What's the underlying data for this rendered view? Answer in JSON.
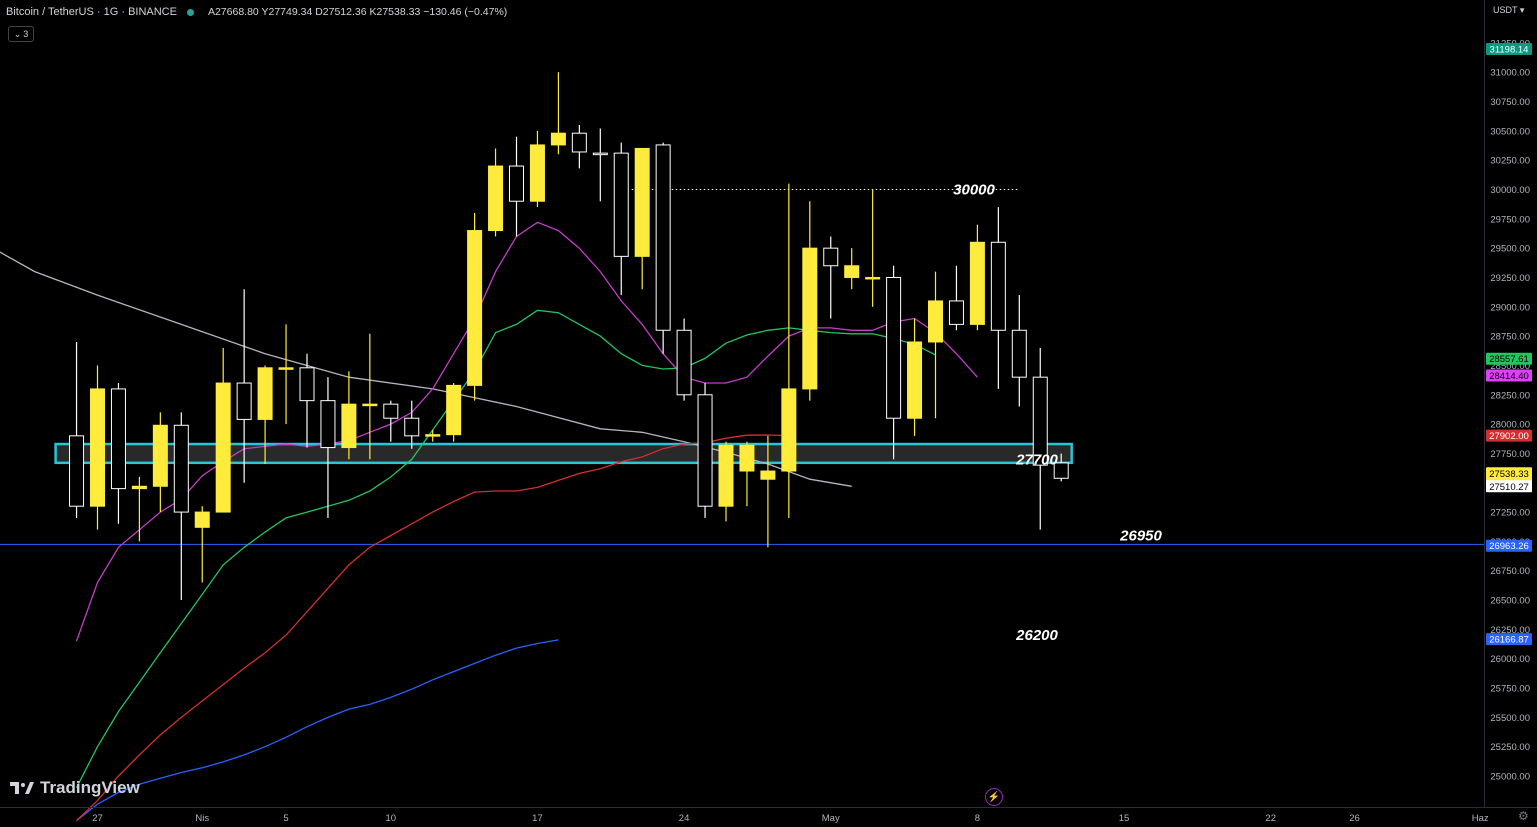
{
  "header": {
    "title": "Bitcoin / TetherUS · 1G · BINANCE",
    "ohlc": "A27668.80  Y27749.34  D27512.36  K27538.33  −130.46 (−0.47%)",
    "collapse_label": "3"
  },
  "axis": {
    "currency": "USDT",
    "y_ticks": [
      "31250.00",
      "31000.00",
      "30750.00",
      "30500.00",
      "30250.00",
      "30000.00",
      "29750.00",
      "29500.00",
      "29250.00",
      "29000.00",
      "28750.00",
      "28500.00",
      "28250.00",
      "28000.00",
      "27750.00",
      "27500.00",
      "27250.00",
      "27000.00",
      "26750.00",
      "26500.00",
      "26250.00",
      "26000.00",
      "25750.00",
      "25500.00",
      "25250.00",
      "25000.00"
    ],
    "x_ticks": [
      {
        "label": "27",
        "day": 0
      },
      {
        "label": "Nis",
        "day": 5
      },
      {
        "label": "5",
        "day": 9
      },
      {
        "label": "10",
        "day": 14
      },
      {
        "label": "17",
        "day": 21
      },
      {
        "label": "24",
        "day": 28
      },
      {
        "label": "May",
        "day": 35
      },
      {
        "label": "8",
        "day": 42
      },
      {
        "label": "15",
        "day": 49
      },
      {
        "label": "22",
        "day": 56
      },
      {
        "label": "26",
        "day": 60
      },
      {
        "label": "Haz",
        "day": 66
      }
    ]
  },
  "price_tags": [
    {
      "label": "31198.14",
      "price": 31198.14,
      "color": "#089981",
      "text_color": "#ffffff"
    },
    {
      "label": "28557.61",
      "price": 28557.61,
      "color": "#22c55e",
      "text_color": "#000000"
    },
    {
      "label": "28414.40",
      "price": 28414.4,
      "color": "#e040fb",
      "text_color": "#000000"
    },
    {
      "label": "27902.00",
      "price": 27902.0,
      "color": "#d32f2f",
      "text_color": "#ffffff"
    },
    {
      "label": "27538.33\n18:03:32",
      "price": 27538.33,
      "color": "#ffeb3b",
      "text_color": "#000000"
    },
    {
      "label": "27510.27",
      "price": 27470,
      "color": "#ffffff",
      "text_color": "#000000"
    },
    {
      "label": "26963.26",
      "price": 26963.26,
      "color": "#2962ff",
      "text_color": "#ffffff"
    },
    {
      "label": "26166.87",
      "price": 26166.87,
      "color": "#2962ff",
      "text_color": "#ffffff"
    }
  ],
  "annotations": [
    {
      "text": "30000",
      "price": 30000
    },
    {
      "text": "27700",
      "price": 27700
    },
    {
      "text": "26950",
      "price": 26950
    },
    {
      "text": "26200",
      "price": 26200
    }
  ],
  "branding": {
    "logo_text": "TradingView"
  },
  "colors": {
    "bull": "#ffeb3b",
    "bear": "#000000",
    "wick": "#ffeb3b",
    "bear_border": "#ffffff",
    "ma_magenta": "#c23ec9",
    "ma_green": "#22c55e",
    "ma_red": "#d32f2f",
    "ma_blue": "#2962ff",
    "ma_gray": "#b2b5be",
    "zone": "#26c6da"
  },
  "chart_data": {
    "type": "candlestick",
    "symbol": "BTCUSDT",
    "interval": "1D",
    "ylim": [
      24850,
      31350
    ],
    "candles": [
      {
        "d": -1,
        "o": 27900,
        "h": 28700,
        "l": 27200,
        "c": 27300
      },
      {
        "d": 0,
        "o": 27300,
        "h": 28500,
        "l": 27100,
        "c": 28300
      },
      {
        "d": 1,
        "o": 28300,
        "h": 28350,
        "l": 27150,
        "c": 27450
      },
      {
        "d": 2,
        "o": 27450,
        "h": 27550,
        "l": 27000,
        "c": 27470
      },
      {
        "d": 3,
        "o": 27470,
        "h": 28100,
        "l": 27250,
        "c": 27990
      },
      {
        "d": 4,
        "o": 27990,
        "h": 28100,
        "l": 26500,
        "c": 27250
      },
      {
        "d": 5,
        "o": 27120,
        "h": 27300,
        "l": 26650,
        "c": 27250
      },
      {
        "d": 6,
        "o": 27250,
        "h": 28650,
        "l": 27250,
        "c": 28350
      },
      {
        "d": 7,
        "o": 28350,
        "h": 29150,
        "l": 27500,
        "c": 28040
      },
      {
        "d": 8,
        "o": 28040,
        "h": 28500,
        "l": 27660,
        "c": 28480
      },
      {
        "d": 9,
        "o": 28480,
        "h": 28850,
        "l": 28000,
        "c": 28480
      },
      {
        "d": 10,
        "o": 28480,
        "h": 28600,
        "l": 27800,
        "c": 28200
      },
      {
        "d": 11,
        "o": 28200,
        "h": 28400,
        "l": 27200,
        "c": 27800
      },
      {
        "d": 12,
        "o": 27800,
        "h": 28450,
        "l": 27700,
        "c": 28170
      },
      {
        "d": 13,
        "o": 28170,
        "h": 28770,
        "l": 27700,
        "c": 28170
      },
      {
        "d": 14,
        "o": 28170,
        "h": 28200,
        "l": 27850,
        "c": 28050
      },
      {
        "d": 15,
        "o": 28050,
        "h": 28200,
        "l": 27790,
        "c": 27900
      },
      {
        "d": 16,
        "o": 27900,
        "h": 27950,
        "l": 27850,
        "c": 27910
      },
      {
        "d": 17,
        "o": 27910,
        "h": 28350,
        "l": 27850,
        "c": 28330
      },
      {
        "d": 18,
        "o": 28330,
        "h": 29800,
        "l": 28200,
        "c": 29650
      },
      {
        "d": 19,
        "o": 29650,
        "h": 30350,
        "l": 29600,
        "c": 30200
      },
      {
        "d": 20,
        "o": 30200,
        "h": 30450,
        "l": 29600,
        "c": 29900
      },
      {
        "d": 21,
        "o": 29900,
        "h": 30500,
        "l": 29850,
        "c": 30380
      },
      {
        "d": 22,
        "o": 30380,
        "h": 31000,
        "l": 30300,
        "c": 30480
      },
      {
        "d": 23,
        "o": 30480,
        "h": 30550,
        "l": 30180,
        "c": 30320
      },
      {
        "d": 24,
        "o": 30310,
        "h": 30520,
        "l": 29900,
        "c": 30300
      },
      {
        "d": 25,
        "o": 30310,
        "h": 30400,
        "l": 29100,
        "c": 29430
      },
      {
        "d": 26,
        "o": 29430,
        "h": 30350,
        "l": 29150,
        "c": 30350
      },
      {
        "d": 27,
        "o": 30380,
        "h": 30400,
        "l": 28600,
        "c": 28800
      },
      {
        "d": 28,
        "o": 28800,
        "h": 28900,
        "l": 28200,
        "c": 28250
      },
      {
        "d": 29,
        "o": 28250,
        "h": 28350,
        "l": 27200,
        "c": 27300
      },
      {
        "d": 30,
        "o": 27300,
        "h": 27850,
        "l": 27170,
        "c": 27820
      },
      {
        "d": 31,
        "o": 27600,
        "h": 27850,
        "l": 27300,
        "c": 27820
      },
      {
        "d": 32,
        "o": 27530,
        "h": 27900,
        "l": 26950,
        "c": 27600
      },
      {
        "d": 33,
        "o": 27600,
        "h": 30050,
        "l": 27200,
        "c": 28300
      },
      {
        "d": 34,
        "o": 28300,
        "h": 29900,
        "l": 28200,
        "c": 29500
      },
      {
        "d": 35,
        "o": 29500,
        "h": 29600,
        "l": 28900,
        "c": 29350
      },
      {
        "d": 36,
        "o": 29250,
        "h": 29500,
        "l": 29150,
        "c": 29350
      },
      {
        "d": 37,
        "o": 29250,
        "h": 30000,
        "l": 29000,
        "c": 29250
      },
      {
        "d": 38,
        "o": 29250,
        "h": 29350,
        "l": 27700,
        "c": 28050
      },
      {
        "d": 39,
        "o": 28050,
        "h": 28900,
        "l": 27900,
        "c": 28700
      },
      {
        "d": 40,
        "o": 28700,
        "h": 29300,
        "l": 28050,
        "c": 29050
      },
      {
        "d": 41,
        "o": 29050,
        "h": 29350,
        "l": 28800,
        "c": 28850
      },
      {
        "d": 42,
        "o": 28850,
        "h": 29700,
        "l": 28800,
        "c": 29550
      },
      {
        "d": 43,
        "o": 29550,
        "h": 29850,
        "l": 28300,
        "c": 28800
      },
      {
        "d": 44,
        "o": 28800,
        "h": 29100,
        "l": 28150,
        "c": 28400
      },
      {
        "d": 45,
        "o": 28400,
        "h": 28650,
        "l": 27100,
        "c": 27650
      },
      {
        "d": 46,
        "o": 27669,
        "h": 27749,
        "l": 27512,
        "c": 27538
      }
    ],
    "ma_magenta": [
      [
        -1,
        26150
      ],
      [
        0,
        26650
      ],
      [
        1,
        26950
      ],
      [
        2,
        27100
      ],
      [
        3,
        27250
      ],
      [
        4,
        27360
      ],
      [
        5,
        27560
      ],
      [
        6,
        27680
      ],
      [
        7,
        27790
      ],
      [
        8,
        27810
      ],
      [
        9,
        27830
      ],
      [
        10,
        27810
      ],
      [
        11,
        27830
      ],
      [
        12,
        27860
      ],
      [
        13,
        27930
      ],
      [
        14,
        28000
      ],
      [
        15,
        28100
      ],
      [
        16,
        28300
      ],
      [
        17,
        28600
      ],
      [
        18,
        28900
      ],
      [
        19,
        29300
      ],
      [
        20,
        29600
      ],
      [
        21,
        29720
      ],
      [
        22,
        29650
      ],
      [
        23,
        29500
      ],
      [
        24,
        29300
      ],
      [
        25,
        29050
      ],
      [
        26,
        28850
      ],
      [
        27,
        28600
      ],
      [
        28,
        28400
      ],
      [
        29,
        28350
      ],
      [
        30,
        28350
      ],
      [
        31,
        28400
      ],
      [
        32,
        28580
      ],
      [
        33,
        28750
      ],
      [
        34,
        28820
      ],
      [
        35,
        28820
      ],
      [
        36,
        28800
      ],
      [
        37,
        28800
      ],
      [
        38,
        28870
      ],
      [
        39,
        28900
      ],
      [
        40,
        28780
      ],
      [
        41,
        28600
      ],
      [
        42,
        28400
      ]
    ],
    "ma_green": [
      [
        -1,
        24900
      ],
      [
        0,
        25250
      ],
      [
        1,
        25550
      ],
      [
        2,
        25800
      ],
      [
        3,
        26050
      ],
      [
        4,
        26300
      ],
      [
        5,
        26550
      ],
      [
        6,
        26800
      ],
      [
        7,
        26950
      ],
      [
        8,
        27080
      ],
      [
        9,
        27200
      ],
      [
        10,
        27250
      ],
      [
        11,
        27300
      ],
      [
        12,
        27350
      ],
      [
        13,
        27430
      ],
      [
        14,
        27550
      ],
      [
        15,
        27700
      ],
      [
        16,
        27950
      ],
      [
        17,
        28200
      ],
      [
        18,
        28450
      ],
      [
        19,
        28780
      ],
      [
        20,
        28850
      ],
      [
        21,
        28970
      ],
      [
        22,
        28950
      ],
      [
        23,
        28850
      ],
      [
        24,
        28750
      ],
      [
        25,
        28600
      ],
      [
        26,
        28500
      ],
      [
        27,
        28470
      ],
      [
        28,
        28480
      ],
      [
        29,
        28560
      ],
      [
        30,
        28690
      ],
      [
        31,
        28760
      ],
      [
        32,
        28800
      ],
      [
        33,
        28820
      ],
      [
        34,
        28800
      ],
      [
        35,
        28780
      ],
      [
        36,
        28770
      ],
      [
        37,
        28770
      ],
      [
        38,
        28730
      ],
      [
        39,
        28680
      ],
      [
        40,
        28590
      ]
    ],
    "ma_red": [
      [
        -1,
        24620
      ],
      [
        0,
        24790
      ],
      [
        1,
        25000
      ],
      [
        2,
        25180
      ],
      [
        3,
        25350
      ],
      [
        4,
        25500
      ],
      [
        5,
        25640
      ],
      [
        6,
        25780
      ],
      [
        7,
        25920
      ],
      [
        8,
        26050
      ],
      [
        9,
        26200
      ],
      [
        10,
        26400
      ],
      [
        11,
        26600
      ],
      [
        12,
        26800
      ],
      [
        13,
        26950
      ],
      [
        14,
        27050
      ],
      [
        15,
        27150
      ],
      [
        16,
        27250
      ],
      [
        17,
        27340
      ],
      [
        18,
        27420
      ],
      [
        19,
        27430
      ],
      [
        20,
        27430
      ],
      [
        21,
        27460
      ],
      [
        22,
        27520
      ],
      [
        23,
        27580
      ],
      [
        24,
        27620
      ],
      [
        25,
        27680
      ],
      [
        26,
        27720
      ],
      [
        27,
        27790
      ],
      [
        28,
        27830
      ],
      [
        29,
        27840
      ],
      [
        30,
        27880
      ],
      [
        31,
        27905
      ],
      [
        32,
        27907
      ],
      [
        33,
        27902
      ]
    ],
    "ma_blue": [
      [
        -1,
        24620
      ],
      [
        0,
        24760
      ],
      [
        1,
        24860
      ],
      [
        2,
        24930
      ],
      [
        3,
        24980
      ],
      [
        4,
        25030
      ],
      [
        5,
        25070
      ],
      [
        6,
        25120
      ],
      [
        7,
        25180
      ],
      [
        8,
        25250
      ],
      [
        9,
        25330
      ],
      [
        10,
        25420
      ],
      [
        11,
        25500
      ],
      [
        12,
        25570
      ],
      [
        13,
        25610
      ],
      [
        14,
        25670
      ],
      [
        15,
        25740
      ],
      [
        16,
        25820
      ],
      [
        17,
        25890
      ],
      [
        18,
        25960
      ],
      [
        19,
        26030
      ],
      [
        20,
        26090
      ],
      [
        21,
        26130
      ],
      [
        22,
        26160
      ]
    ],
    "ma_gray": [
      [
        -10,
        30000
      ],
      [
        -3,
        29300
      ],
      [
        0,
        29100
      ],
      [
        4,
        28850
      ],
      [
        8,
        28600
      ],
      [
        12,
        28400
      ],
      [
        16,
        28300
      ],
      [
        20,
        28150
      ],
      [
        24,
        27960
      ],
      [
        26,
        27930
      ],
      [
        28,
        27850
      ],
      [
        30,
        27760
      ],
      [
        32,
        27660
      ],
      [
        34,
        27530
      ],
      [
        36,
        27470
      ]
    ],
    "zone": {
      "from_day": -2,
      "to_day": 46.5,
      "top": 27830,
      "bottom": 27670,
      "label": "27700"
    },
    "levels": [
      {
        "price": 30000,
        "from_day": 25.5,
        "to_day": 44,
        "style": "dotted",
        "color": "#ffffff"
      },
      {
        "price": 26975,
        "from_day": -10,
        "to_day": 70,
        "style": "solid",
        "color": "#2962ff"
      }
    ]
  }
}
